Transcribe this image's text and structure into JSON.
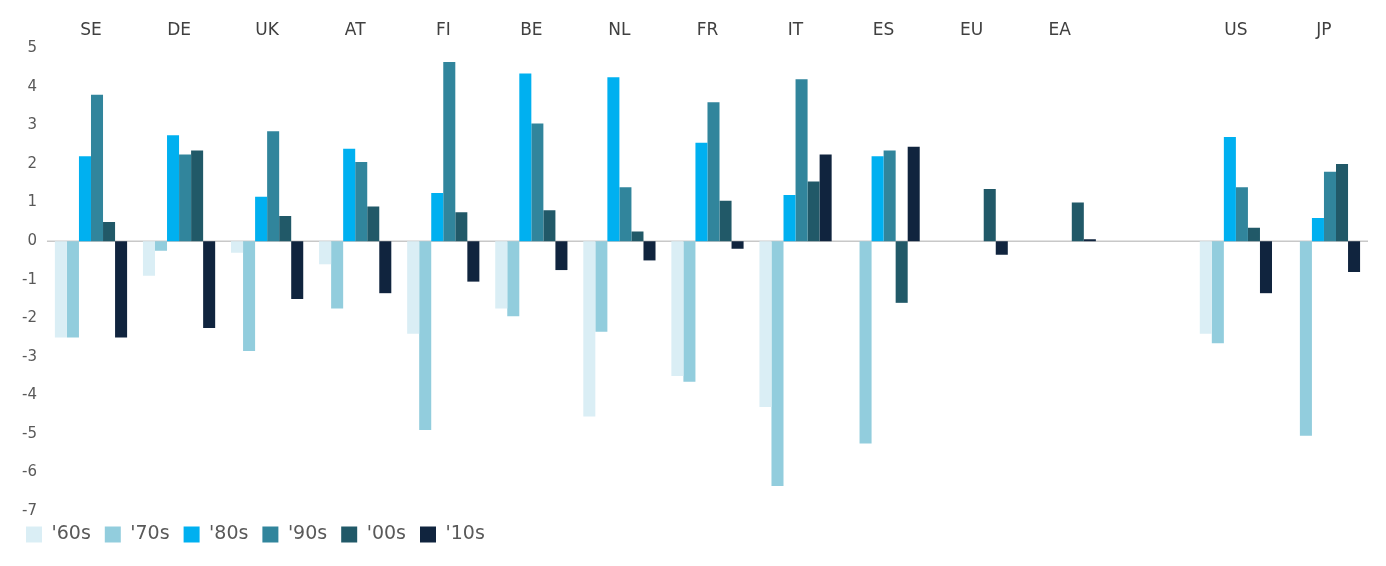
{
  "chart_data": {
    "type": "bar",
    "categories": [
      "SE",
      "DE",
      "UK",
      "AT",
      "FI",
      "BE",
      "NL",
      "FR",
      "IT",
      "ES",
      "EU",
      "EA",
      null,
      "US",
      "JP"
    ],
    "series": [
      {
        "name": "'60s",
        "color": "#daeef5",
        "values": [
          -2.5,
          -0.9,
          -0.3,
          -0.6,
          -2.4,
          -1.75,
          -4.55,
          -3.5,
          -4.3,
          null,
          null,
          null,
          null,
          -2.4,
          null
        ]
      },
      {
        "name": "'70s",
        "color": "#92cddd",
        "values": [
          -2.5,
          -0.25,
          -2.85,
          -1.75,
          -4.9,
          -1.95,
          -2.35,
          -3.65,
          -6.35,
          -5.25,
          null,
          null,
          null,
          -2.65,
          -5.05
        ]
      },
      {
        "name": "'80s",
        "color": "#00b0f0",
        "values": [
          2.2,
          2.75,
          1.15,
          2.4,
          1.25,
          4.35,
          4.25,
          2.55,
          1.2,
          2.2,
          null,
          null,
          null,
          2.7,
          0.6
        ]
      },
      {
        "name": "'90s",
        "color": "#31859c",
        "values": [
          3.8,
          2.25,
          2.85,
          2.05,
          4.65,
          3.05,
          1.4,
          3.6,
          4.2,
          2.35,
          null,
          null,
          null,
          1.4,
          1.8
        ]
      },
      {
        "name": "'00s",
        "color": "#215968",
        "values": [
          0.5,
          2.35,
          0.65,
          0.9,
          0.75,
          0.8,
          0.25,
          1.05,
          1.55,
          -1.6,
          1.35,
          1.0,
          null,
          0.35,
          2.0
        ]
      },
      {
        "name": "'10s",
        "color": "#10243e",
        "values": [
          -2.5,
          -2.25,
          -1.5,
          -1.35,
          -1.05,
          -0.75,
          -0.5,
          -0.2,
          2.25,
          2.45,
          -0.35,
          0.05,
          null,
          -1.35,
          -0.8
        ]
      }
    ],
    "ylim": [
      -7,
      5
    ],
    "yticks": [
      -7,
      -6,
      -5,
      -4,
      -3,
      -2,
      -1,
      0,
      1,
      2,
      3,
      4,
      5
    ],
    "ref_lines": [
      {
        "axis": "y",
        "value": 0,
        "color": "#c8c8c8"
      }
    ],
    "grid": false,
    "legend": "bottom left"
  }
}
